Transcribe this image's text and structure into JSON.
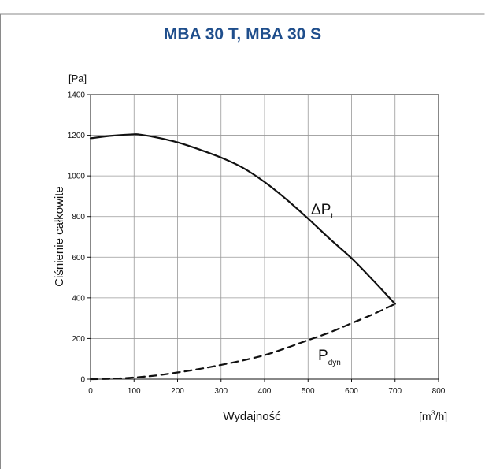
{
  "chart_data": {
    "type": "line",
    "title": "MBA 30 T, MBA 30 S",
    "ylabel": "Ciśnienie całkowite",
    "yunit": "[Pa]",
    "xlabel": "Wydajność",
    "xunit": {
      "prefix": "[m",
      "sup": "3",
      "suffix": "/h]"
    },
    "xlim": [
      0,
      800
    ],
    "ylim": [
      0,
      1400
    ],
    "xticks": [
      0,
      100,
      200,
      300,
      400,
      500,
      600,
      700,
      800
    ],
    "yticks": [
      0,
      200,
      400,
      600,
      800,
      1000,
      1200,
      1400
    ],
    "grid": true,
    "series": [
      {
        "name": "ΔP",
        "subscript": "t",
        "style": "solid",
        "x": [
          0,
          50,
          100,
          115,
          150,
          200,
          250,
          300,
          350,
          400,
          450,
          500,
          550,
          600,
          650,
          700
        ],
        "y": [
          1185,
          1198,
          1205,
          1203,
          1190,
          1165,
          1130,
          1090,
          1040,
          970,
          885,
          790,
          690,
          595,
          485,
          370
        ]
      },
      {
        "name": "P",
        "subscript": "dyn",
        "style": "dashed",
        "x": [
          0,
          50,
          100,
          150,
          200,
          250,
          300,
          350,
          400,
          450,
          500,
          550,
          600,
          650,
          700
        ],
        "y": [
          0,
          2,
          8,
          18,
          33,
          50,
          70,
          92,
          118,
          153,
          192,
          230,
          275,
          320,
          370
        ]
      }
    ],
    "colors": {
      "title": "#1f4e8c",
      "line": "#111111",
      "grid": "#999999",
      "frame": "#8a8a8a"
    }
  }
}
